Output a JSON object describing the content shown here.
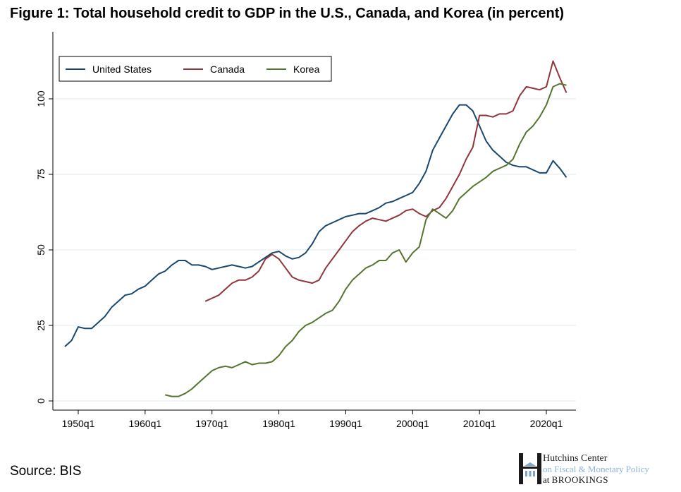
{
  "title": "Figure 1: Total household credit to GDP in the U.S., Canada, and Korea (in percent)",
  "source": "Source: BIS",
  "logo": {
    "line1": "Hutchins Center",
    "line2": "on Fiscal & Monetary Policy",
    "line3_prefix": "at",
    "line3": "BROOKINGS"
  },
  "chart_data": {
    "type": "line",
    "title": "Figure 1: Total household credit to GDP in the U.S., Canada, and Korea (in percent)",
    "xlabel": "",
    "ylabel": "",
    "xlim": [
      1946.2,
      2024.4
    ],
    "ylim": [
      -3,
      122
    ],
    "x_ticks": [
      {
        "value": 1950,
        "label": "1950q1"
      },
      {
        "value": 1960,
        "label": "1960q1"
      },
      {
        "value": 1970,
        "label": "1970q1"
      },
      {
        "value": 1980,
        "label": "1980q1"
      },
      {
        "value": 1990,
        "label": "1990q1"
      },
      {
        "value": 2000,
        "label": "2000q1"
      },
      {
        "value": 2010,
        "label": "2010q1"
      },
      {
        "value": 2020,
        "label": "2020q1"
      }
    ],
    "y_ticks": [
      {
        "value": 0,
        "label": "0"
      },
      {
        "value": 25,
        "label": "25"
      },
      {
        "value": 50,
        "label": "50"
      },
      {
        "value": 75,
        "label": "75"
      },
      {
        "value": 100,
        "label": "100"
      }
    ],
    "grid": true,
    "legend_position": "top-left",
    "series": [
      {
        "name": "United States",
        "color": "#1a476f",
        "start": 1948,
        "values": [
          18,
          20,
          24.5,
          24,
          24,
          26,
          28,
          31,
          33,
          35,
          35.5,
          37,
          38,
          40,
          42,
          43,
          45,
          46.5,
          46.5,
          45,
          45,
          44.5,
          43.5,
          44,
          44.5,
          45,
          44.5,
          44,
          44.5,
          46,
          47.5,
          49,
          49.5,
          48,
          47,
          47.5,
          49,
          52,
          56,
          58,
          59,
          60,
          61,
          61.5,
          62,
          62,
          63,
          64,
          65.5,
          66,
          67,
          68,
          69,
          72,
          76,
          83,
          87,
          91,
          95,
          98,
          98,
          96,
          91,
          86,
          83,
          81,
          79,
          78,
          77.5,
          77.5,
          76.5,
          75.5,
          75.5,
          79.5,
          77,
          74
        ]
      },
      {
        "name": "Canada",
        "color": "#90353b",
        "start": 1969,
        "values": [
          33,
          34,
          35,
          37,
          39,
          40,
          40,
          41,
          43,
          47,
          48.5,
          47,
          44,
          41,
          40,
          39.5,
          39,
          40,
          44,
          47,
          50,
          53,
          56,
          58,
          59.5,
          60.5,
          60,
          59.5,
          60.5,
          61.5,
          63,
          63.5,
          62,
          61,
          63,
          64,
          67,
          71,
          75,
          80,
          84,
          94.5,
          94.5,
          94,
          95,
          95,
          96,
          101,
          104,
          103.5,
          103,
          104,
          112.5,
          107,
          102
        ]
      },
      {
        "name": "Korea",
        "color": "#55752f",
        "start": 1963,
        "values": [
          2,
          1.5,
          1.5,
          2.5,
          4,
          6,
          8,
          10,
          11,
          11.5,
          11,
          12,
          13,
          12,
          12.5,
          12.5,
          13,
          15,
          18,
          20,
          23,
          25,
          26,
          27.5,
          29,
          30,
          33,
          37,
          40,
          42,
          44,
          45,
          46.5,
          46.5,
          49,
          50,
          46,
          49,
          51,
          60,
          63.5,
          62,
          60.5,
          63,
          67,
          69,
          71,
          72.5,
          74,
          76,
          77,
          78,
          80,
          85,
          89,
          91,
          94,
          98,
          104,
          105,
          104.5
        ]
      }
    ]
  }
}
